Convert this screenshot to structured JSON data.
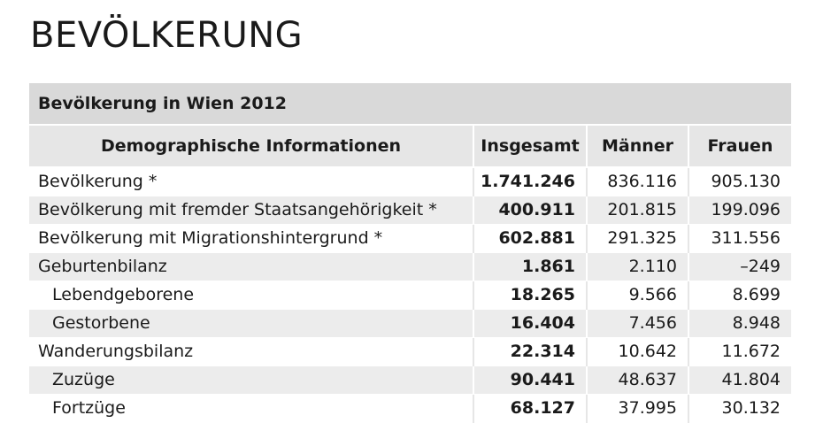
{
  "page": {
    "title": "BEVÖLKERUNG"
  },
  "table": {
    "caption": "Bevölkerung in Wien 2012",
    "headers": [
      "Demographische Informationen",
      "Insgesamt",
      "Männer",
      "Frauen"
    ],
    "rows": [
      {
        "label": "Bevölkerung *",
        "indent": false,
        "total": "1.741.246",
        "men": "836.116",
        "women": "905.130"
      },
      {
        "label": "Bevölkerung mit fremder Staatsangehörigkeit *",
        "indent": false,
        "total": "400.911",
        "men": "201.815",
        "women": "199.096"
      },
      {
        "label": "Bevölkerung mit Migrationshintergrund *",
        "indent": false,
        "total": "602.881",
        "men": "291.325",
        "women": "311.556"
      },
      {
        "label": "Geburtenbilanz",
        "indent": false,
        "total": "1.861",
        "men": "2.110",
        "women": "–249"
      },
      {
        "label": "Lebendgeborene",
        "indent": true,
        "total": "18.265",
        "men": "9.566",
        "women": "8.699"
      },
      {
        "label": "Gestorbene",
        "indent": true,
        "total": "16.404",
        "men": "7.456",
        "women": "8.948"
      },
      {
        "label": "Wanderungsbilanz",
        "indent": false,
        "total": "22.314",
        "men": "10.642",
        "women": "11.672"
      },
      {
        "label": "Zuzüge",
        "indent": true,
        "total": "90.441",
        "men": "48.637",
        "women": "41.804"
      },
      {
        "label": "Fortzüge",
        "indent": true,
        "total": "68.127",
        "men": "37.995",
        "women": "30.132"
      }
    ]
  }
}
